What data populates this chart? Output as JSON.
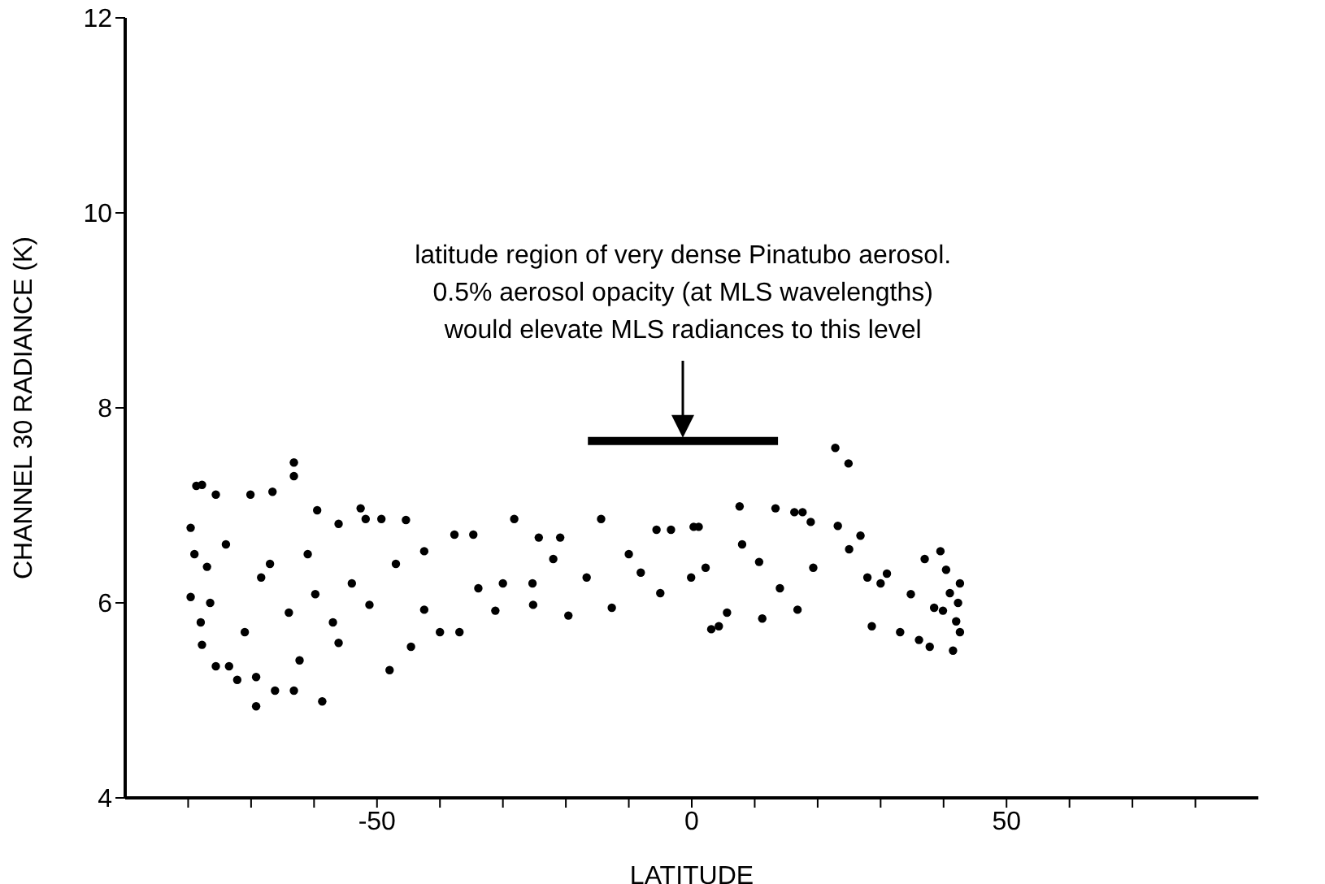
{
  "chart_data": {
    "type": "scatter",
    "xlabel": "LATITUDE",
    "ylabel": "CHANNEL 30 RADIANCE (K)",
    "xlim": [
      -90,
      90
    ],
    "ylim": [
      4,
      12
    ],
    "xticks": [
      {
        "value": -80,
        "label": null
      },
      {
        "value": -70,
        "label": null
      },
      {
        "value": -60,
        "label": null
      },
      -50,
      {
        "value": -40,
        "label": null
      },
      {
        "value": -30,
        "label": null
      },
      {
        "value": -20,
        "label": null
      },
      {
        "value": -10,
        "label": null
      },
      0,
      {
        "value": 10,
        "label": null
      },
      {
        "value": 20,
        "label": null
      },
      {
        "value": 30,
        "label": null
      },
      {
        "value": 40,
        "label": null
      },
      50,
      {
        "value": 60,
        "label": null
      },
      {
        "value": 70,
        "label": null
      },
      {
        "value": 80,
        "label": null
      }
    ],
    "yticks": [
      4,
      6,
      8,
      10,
      12
    ],
    "marker": "circle",
    "annotations": [
      "latitude region of very dense Pinatubo aerosol.\n0.5% aerosol opacity (at MLS wavelengths)\nwould elevate MLS radiances to this level"
    ],
    "series": [
      {
        "color": "#000000",
        "x": [
          -78.7,
          -77.8,
          -79.6,
          -79.6,
          -77.8,
          -75.6,
          -75.6,
          -73.5,
          -72.2,
          -70.1,
          -69.2,
          -69.2,
          -66.6,
          -66.2,
          -63.2,
          -63.2,
          -63.2,
          -62.3,
          -59.5,
          -58.7,
          -56.1,
          -56.1,
          -52.6,
          -51.8,
          -48.0,
          -49.3,
          -45.4,
          -44.6,
          -42.5,
          -37.7,
          -36.9,
          -34.7,
          -31.2,
          -28.2,
          -25.2,
          -24.3,
          -20.9,
          -19.6,
          -14.4,
          -12.7,
          -3.3,
          0.3,
          3.1,
          -77.0,
          -68.4,
          -59.8,
          -51.2,
          -42.5,
          -33.9,
          -25.3,
          -16.7,
          -8.1,
          -0.1,
          -79.0,
          -78.0,
          -76.5,
          -74.0,
          -71.0,
          -67.0,
          -64.0,
          -61.0,
          -57.0,
          -54.0,
          -47.0,
          -40.0,
          -30.0,
          -22.0,
          -10.0,
          -5.0,
          22.8,
          24.9,
          7.6,
          13.3,
          16.3,
          17.6,
          18.9,
          23.2,
          26.8,
          -5.6,
          1.1,
          39.5,
          37.0,
          4.3,
          5.6,
          11.2,
          16.8,
          28.6,
          33.1,
          36.1,
          37.8,
          41.5,
          42.6,
          42.6,
          40.4,
          2.2,
          10.7,
          19.3,
          27.9,
          34.8,
          39.9,
          42.0,
          42.3,
          41.0,
          38.5,
          31.0,
          25.0,
          8.0,
          14.0,
          30.0
        ],
        "values": [
          7.2,
          7.21,
          6.77,
          6.06,
          5.57,
          7.11,
          5.35,
          5.35,
          5.21,
          7.11,
          5.24,
          4.94,
          7.14,
          5.1,
          7.44,
          7.3,
          5.1,
          5.41,
          6.95,
          4.99,
          6.81,
          5.59,
          6.97,
          6.86,
          5.31,
          6.86,
          6.85,
          5.55,
          6.53,
          6.7,
          5.7,
          6.7,
          5.92,
          6.86,
          5.98,
          6.67,
          6.67,
          5.87,
          6.86,
          5.95,
          6.75,
          6.78,
          5.73,
          6.37,
          6.26,
          6.09,
          5.98,
          5.93,
          6.15,
          6.2,
          6.26,
          6.31,
          6.26,
          6.5,
          5.8,
          6.0,
          6.6,
          5.7,
          6.4,
          5.9,
          6.5,
          5.8,
          6.2,
          6.4,
          5.7,
          6.2,
          6.45,
          6.5,
          6.1,
          7.59,
          7.43,
          6.99,
          6.97,
          6.93,
          6.93,
          6.83,
          6.79,
          6.69,
          6.75,
          6.78,
          6.53,
          6.45,
          5.76,
          5.9,
          5.84,
          5.93,
          5.76,
          5.7,
          5.62,
          5.55,
          5.51,
          6.2,
          5.7,
          6.34,
          6.36,
          6.42,
          6.36,
          6.26,
          6.09,
          5.92,
          5.81,
          6.0,
          6.1,
          5.95,
          6.3,
          6.55,
          6.6,
          6.15,
          6.2
        ]
      },
      {
        "type": "line",
        "marker": "none",
        "color": "#000000",
        "x": [
          -16.5,
          13.7
        ],
        "values": [
          7.66,
          7.66
        ]
      }
    ]
  }
}
